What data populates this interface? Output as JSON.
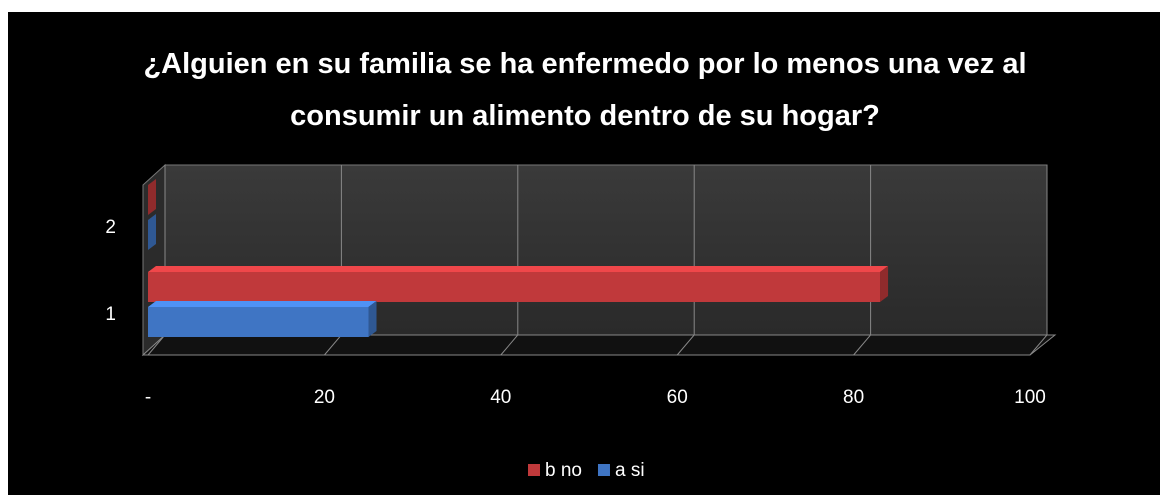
{
  "chart_data": {
    "type": "bar3d_horizontal",
    "title": "¿Alguien en su familia se ha enfermedo por lo menos una vez al consumir un alimento dentro de su hogar?",
    "categories": [
      "1",
      "2"
    ],
    "series": [
      {
        "name": "b no",
        "color": "#c0393b",
        "values": [
          83,
          0
        ]
      },
      {
        "name": "a si",
        "color": "#3f75c4",
        "values": [
          25,
          0
        ]
      }
    ],
    "xlim": [
      0,
      100
    ],
    "xticks": [
      {
        "value": 0,
        "label": "-"
      },
      20,
      40,
      60,
      80,
      100
    ],
    "grid": true,
    "legend": "bottom"
  }
}
